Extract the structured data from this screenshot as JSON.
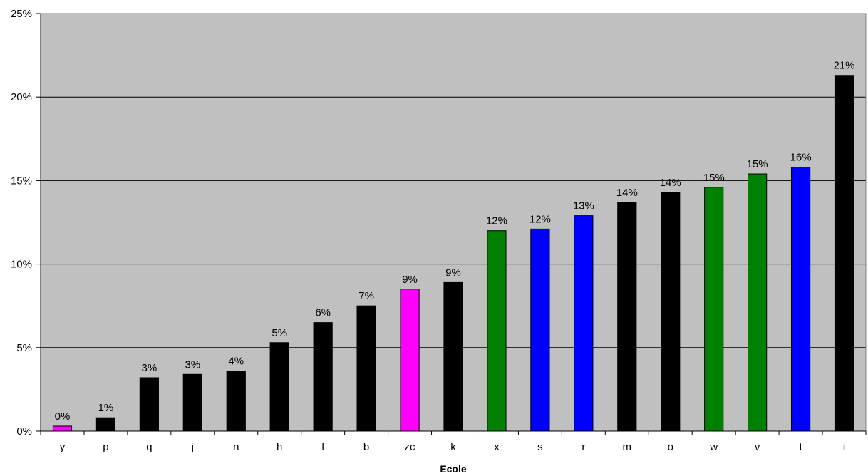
{
  "chart_data": {
    "type": "bar",
    "title": "",
    "xlabel": "Ecole",
    "ylabel": "",
    "ylim": [
      0,
      25
    ],
    "y_unit": "%",
    "y_ticks": [
      "0%",
      "5%",
      "10%",
      "15%",
      "20%",
      "25%"
    ],
    "grid": true,
    "legend": "none",
    "categories": [
      "y",
      "p",
      "q",
      "j",
      "n",
      "h",
      "l",
      "b",
      "zc",
      "k",
      "x",
      "s",
      "r",
      "m",
      "o",
      "w",
      "v",
      "t",
      "i"
    ],
    "values": [
      0.3,
      0.8,
      3.2,
      3.4,
      3.6,
      5.3,
      6.5,
      7.5,
      8.5,
      8.9,
      12.0,
      12.1,
      12.9,
      13.7,
      14.3,
      14.6,
      15.4,
      15.8,
      21.3
    ],
    "data_labels": [
      "0%",
      "1%",
      "3%",
      "3%",
      "4%",
      "5%",
      "6%",
      "7%",
      "9%",
      "9%",
      "12%",
      "12%",
      "13%",
      "14%",
      "14%",
      "15%",
      "15%",
      "16%",
      "21%"
    ],
    "bar_colors": [
      "#ff00ff",
      "#000000",
      "#000000",
      "#000000",
      "#000000",
      "#000000",
      "#000000",
      "#000000",
      "#ff00ff",
      "#000000",
      "#008000",
      "#0000ff",
      "#0000ff",
      "#000000",
      "#000000",
      "#008000",
      "#008000",
      "#0000ff",
      "#000000"
    ],
    "plot_background": "#c0c0c0"
  }
}
